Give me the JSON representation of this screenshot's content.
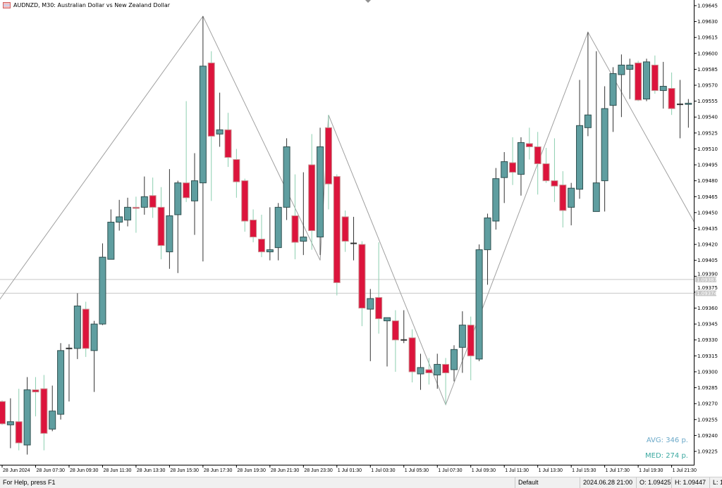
{
  "window": {
    "title": "AUDNZD, M30:  Australian Dollar vs New Zealand Dollar",
    "icon": "chart-window-icon"
  },
  "stats": {
    "avg": "AVG: 346 p.",
    "med": "MED: 274 p.",
    "avg_color": "#6aa8c8",
    "med_color": "#3aa8a0"
  },
  "statusbar": {
    "help": "For Help, press F1",
    "profile": "Default",
    "datetime": "2024.06.28 21:00",
    "open": "O: 1.09425",
    "high": "H: 1.09447",
    "low": "L: 1"
  },
  "colors": {
    "bull": "#5f9ea0",
    "bear": "#dc143c",
    "bull_wick": "#333333",
    "bear_wick": "#8ccfb0",
    "zigzag": "#a0a0a0",
    "hline": "#c8c8c8"
  },
  "chart_data": {
    "type": "candlestick",
    "symbol": "AUDNZD",
    "timeframe": "M30",
    "ylim": [
      1.09215,
      1.09651
    ],
    "y_ticks": [
      "1.09645",
      "1.09630",
      "1.09615",
      "1.09600",
      "1.09585",
      "1.09570",
      "1.09555",
      "1.09540",
      "1.09525",
      "1.09510",
      "1.09495",
      "1.09480",
      "1.09465",
      "1.09450",
      "1.09435",
      "1.09420",
      "1.09405",
      "1.09390",
      "1.09375",
      "1.09360",
      "1.09345",
      "1.09330",
      "1.09315",
      "1.09300",
      "1.09285",
      "1.09270",
      "1.09255",
      "1.09240",
      "1.09225"
    ],
    "x_ticks": [
      {
        "bar": 0,
        "label": "28 Jun 2024"
      },
      {
        "bar": 4,
        "label": "28 Jun 07:30"
      },
      {
        "bar": 8,
        "label": "28 Jun 09:30"
      },
      {
        "bar": 12,
        "label": "28 Jun 11:30"
      },
      {
        "bar": 16,
        "label": "28 Jun 13:30"
      },
      {
        "bar": 20,
        "label": "28 Jun 15:30"
      },
      {
        "bar": 24,
        "label": "28 Jun 17:30"
      },
      {
        "bar": 28,
        "label": "28 Jun 19:30"
      },
      {
        "bar": 32,
        "label": "28 Jun 21:30"
      },
      {
        "bar": 36,
        "label": "28 Jun 23:30"
      },
      {
        "bar": 40,
        "label": "1 Jul 01:30"
      },
      {
        "bar": 44,
        "label": "1 Jul 03:30"
      },
      {
        "bar": 48,
        "label": "1 Jul 05:30"
      },
      {
        "bar": 52,
        "label": "1 Jul 07:30"
      },
      {
        "bar": 56,
        "label": "1 Jul 09:30"
      },
      {
        "bar": 60,
        "label": "1 Jul 11:30"
      },
      {
        "bar": 64,
        "label": "1 Jul 13:30"
      },
      {
        "bar": 68,
        "label": "1 Jul 15:30"
      },
      {
        "bar": 72,
        "label": "1 Jul 17:30"
      },
      {
        "bar": 76,
        "label": "1 Jul 19:30"
      },
      {
        "bar": 80,
        "label": "1 Jul 21:30"
      }
    ],
    "ohlc": [
      [
        1.09272,
        1.09273,
        1.0925,
        1.09251
      ],
      [
        1.0925,
        1.09275,
        1.09228,
        1.09253
      ],
      [
        1.09253,
        1.09284,
        1.09226,
        1.09233
      ],
      [
        1.09231,
        1.09295,
        1.09222,
        1.09283
      ],
      [
        1.09283,
        1.09295,
        1.09258,
        1.09281
      ],
      [
        1.09284,
        1.09297,
        1.09226,
        1.09242
      ],
      [
        1.09246,
        1.09287,
        1.09244,
        1.09263
      ],
      [
        1.0926,
        1.09327,
        1.09255,
        1.0932
      ],
      [
        1.09322,
        1.09326,
        1.09272,
        1.09322
      ],
      [
        1.09322,
        1.09374,
        1.09312,
        1.09362
      ],
      [
        1.09359,
        1.09366,
        1.09314,
        1.09322
      ],
      [
        1.0932,
        1.09348,
        1.09281,
        1.09345
      ],
      [
        1.09345,
        1.09421,
        1.09344,
        1.09408
      ],
      [
        1.09406,
        1.09453,
        1.09406,
        1.09441
      ],
      [
        1.09441,
        1.09462,
        1.09433,
        1.09446
      ],
      [
        1.09443,
        1.09464,
        1.09437,
        1.09455
      ],
      [
        1.09455,
        1.09465,
        1.09431,
        1.09454
      ],
      [
        1.09455,
        1.09484,
        1.09448,
        1.09465
      ],
      [
        1.09466,
        1.09483,
        1.09445,
        1.09455
      ],
      [
        1.09455,
        1.09474,
        1.09406,
        1.09419
      ],
      [
        1.09413,
        1.09491,
        1.09397,
        1.09447
      ],
      [
        1.09448,
        1.0948,
        1.09393,
        1.09478
      ],
      [
        1.09478,
        1.09555,
        1.0946,
        1.09464
      ],
      [
        1.09461,
        1.09506,
        1.09429,
        1.0948
      ],
      [
        1.09478,
        1.09635,
        1.09404,
        1.09588
      ],
      [
        1.09591,
        1.09602,
        1.09461,
        1.09522
      ],
      [
        1.09524,
        1.09563,
        1.09512,
        1.09528
      ],
      [
        1.09528,
        1.09544,
        1.09493,
        1.09502
      ],
      [
        1.095,
        1.0951,
        1.09464,
        1.09479
      ],
      [
        1.0948,
        1.09482,
        1.09432,
        1.09442
      ],
      [
        1.09443,
        1.09453,
        1.09422,
        1.09427
      ],
      [
        1.09425,
        1.09448,
        1.09408,
        1.09413
      ],
      [
        1.09413,
        1.09455,
        1.09405,
        1.09415
      ],
      [
        1.09417,
        1.09459,
        1.09405,
        1.09455
      ],
      [
        1.09455,
        1.0952,
        1.09443,
        1.09512
      ],
      [
        1.09447,
        1.09486,
        1.09406,
        1.09422
      ],
      [
        1.09423,
        1.09488,
        1.0941,
        1.09427
      ],
      [
        1.09495,
        1.09524,
        1.09415,
        1.09433
      ],
      [
        1.09427,
        1.0953,
        1.0941,
        1.09512
      ],
      [
        1.0953,
        1.09542,
        1.09453,
        1.09477
      ],
      [
        1.09484,
        1.09486,
        1.09372,
        1.09384
      ],
      [
        1.09446,
        1.09452,
        1.09413,
        1.09423
      ],
      [
        1.09421,
        1.09446,
        1.09405,
        1.09421
      ],
      [
        1.0942,
        1.09423,
        1.09343,
        1.0936
      ],
      [
        1.09359,
        1.09378,
        1.0931,
        1.09369
      ],
      [
        1.0937,
        1.09422,
        1.09336,
        1.0935
      ],
      [
        1.09348,
        1.09351,
        1.09305,
        1.09351
      ],
      [
        1.09348,
        1.09358,
        1.093,
        1.0933
      ],
      [
        1.0933,
        1.09358,
        1.09327,
        1.0933
      ],
      [
        1.09332,
        1.0934,
        1.0929,
        1.093
      ],
      [
        1.09298,
        1.09317,
        1.09283,
        1.09304
      ],
      [
        1.09302,
        1.09313,
        1.09288,
        1.09299
      ],
      [
        1.09297,
        1.09317,
        1.09284,
        1.09307
      ],
      [
        1.09307,
        1.09313,
        1.09269,
        1.09299
      ],
      [
        1.09302,
        1.09325,
        1.09291,
        1.09321
      ],
      [
        1.09323,
        1.09357,
        1.09299,
        1.09344
      ],
      [
        1.09344,
        1.09352,
        1.09292,
        1.09315
      ],
      [
        1.09312,
        1.0942,
        1.0931,
        1.09415
      ],
      [
        1.09415,
        1.09449,
        1.09382,
        1.09445
      ],
      [
        1.09442,
        1.09492,
        1.09434,
        1.09482
      ],
      [
        1.09483,
        1.09507,
        1.09459,
        1.09498
      ],
      [
        1.09497,
        1.09521,
        1.09476,
        1.09488
      ],
      [
        1.09486,
        1.09521,
        1.09466,
        1.09516
      ],
      [
        1.09515,
        1.0953,
        1.095,
        1.09512
      ],
      [
        1.09512,
        1.09526,
        1.09467,
        1.09496
      ],
      [
        1.09496,
        1.09511,
        1.09478,
        1.0948
      ],
      [
        1.0948,
        1.0952,
        1.0946,
        1.09475
      ],
      [
        1.09476,
        1.09489,
        1.09436,
        1.09452
      ],
      [
        1.09455,
        1.09478,
        1.09438,
        1.09473
      ],
      [
        1.09472,
        1.09575,
        1.09463,
        1.09532
      ],
      [
        1.0953,
        1.0962,
        1.09522,
        1.09542
      ],
      [
        1.09451,
        1.09602,
        1.09451,
        1.09478
      ],
      [
        1.0948,
        1.09569,
        1.09451,
        1.09548
      ],
      [
        1.09551,
        1.09587,
        1.09526,
        1.09581
      ],
      [
        1.0958,
        1.09599,
        1.0954,
        1.09589
      ],
      [
        1.09585,
        1.09595,
        1.09557,
        1.09589
      ],
      [
        1.09591,
        1.09593,
        1.09555,
        1.09556
      ],
      [
        1.09557,
        1.09595,
        1.09555,
        1.09592
      ],
      [
        1.09589,
        1.09598,
        1.09562,
        1.09565
      ],
      [
        1.09565,
        1.09592,
        1.09548,
        1.09569
      ],
      [
        1.09567,
        1.09582,
        1.09542,
        1.09548
      ],
      [
        1.09552,
        1.09575,
        1.0952,
        1.09552
      ],
      [
        1.09552,
        1.09557,
        1.0953,
        1.09553
      ]
    ],
    "ohlc_order": [
      "open",
      "high",
      "low",
      "close"
    ],
    "zigzag": [
      {
        "bar": -0.3,
        "price": 1.09368
      },
      {
        "bar": 24,
        "price": 1.09635
      },
      {
        "bar": 38,
        "price": 1.09405
      },
      {
        "bar": 39,
        "price": 1.09542
      },
      {
        "bar": 53,
        "price": 1.09269
      },
      {
        "bar": 70,
        "price": 1.0962
      },
      {
        "bar": 82.7,
        "price": 1.09441
      }
    ],
    "price_lines": [
      {
        "price": 1.09387,
        "label": "1.09387"
      },
      {
        "price": 1.09374,
        "label": "1.09374"
      }
    ]
  }
}
